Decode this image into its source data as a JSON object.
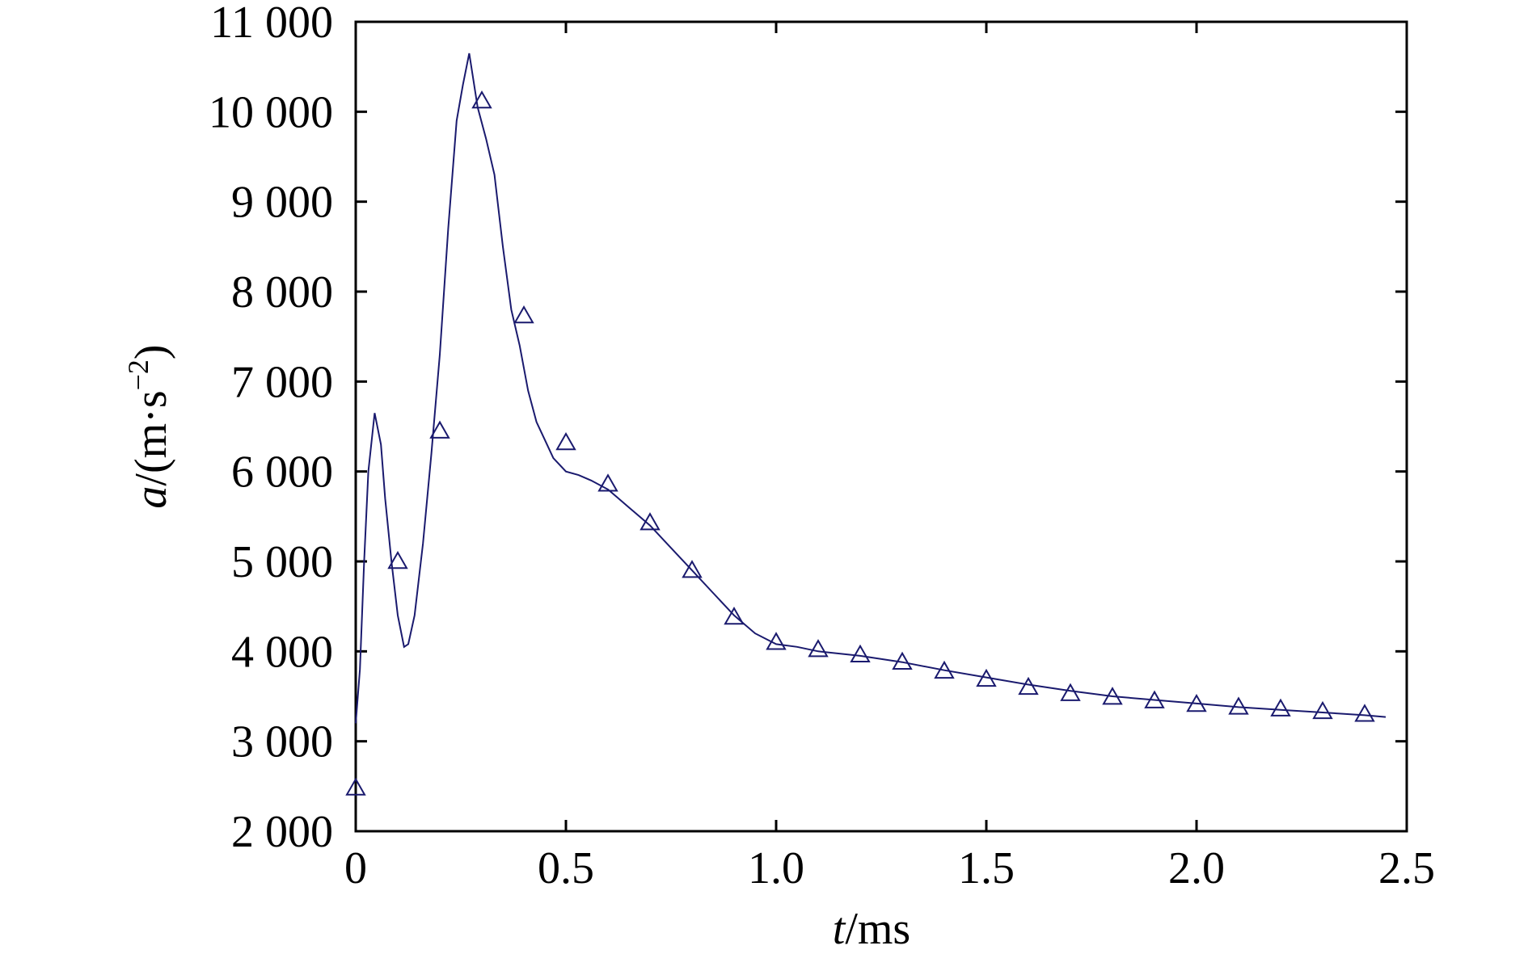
{
  "chart_data": {
    "type": "line",
    "xlabel_var": "t",
    "xlabel_unit": "/ms",
    "ylabel_var": "a",
    "ylabel_unit_open": "/(m·s",
    "ylabel_unit_exp": "−2",
    "ylabel_unit_close": ")",
    "xlim": [
      0,
      2.5
    ],
    "ylim": [
      2000,
      11000
    ],
    "grid": false,
    "x_ticks": [
      0,
      0.5,
      1.0,
      1.5,
      2.0,
      2.5
    ],
    "x_tick_labels": [
      "0",
      "0.5",
      "1.0",
      "1.5",
      "2.0",
      "2.5"
    ],
    "y_ticks": [
      2000,
      3000,
      4000,
      5000,
      6000,
      7000,
      8000,
      9000,
      10000,
      11000
    ],
    "y_tick_labels": [
      "2 000",
      "3 000",
      "4 000",
      "5 000",
      "6 000",
      "7 000",
      "8 000",
      "9 000",
      "10 000",
      "11 000"
    ],
    "line_color": "#1a1a6e",
    "marker_color": "#1a1a6e",
    "series": [
      {
        "marker": "triangle",
        "line_x": [
          0,
          0.01,
          0.02,
          0.03,
          0.045,
          0.06,
          0.07,
          0.085,
          0.1,
          0.115,
          0.125,
          0.14,
          0.16,
          0.18,
          0.2,
          0.22,
          0.24,
          0.255,
          0.27,
          0.28,
          0.29,
          0.31,
          0.33,
          0.35,
          0.37,
          0.39,
          0.41,
          0.43,
          0.45,
          0.47,
          0.5,
          0.53,
          0.56,
          0.6,
          0.65,
          0.7,
          0.75,
          0.8,
          0.85,
          0.9,
          0.95,
          1.0,
          1.05,
          1.1,
          1.2,
          1.3,
          1.4,
          1.5,
          1.6,
          1.7,
          1.8,
          1.9,
          2.0,
          2.1,
          2.2,
          2.3,
          2.4,
          2.45
        ],
        "line_y": [
          3200,
          3800,
          5000,
          6000,
          6650,
          6300,
          5700,
          5000,
          4400,
          4050,
          4080,
          4400,
          5200,
          6200,
          7300,
          8700,
          9900,
          10300,
          10650,
          10350,
          10050,
          9700,
          9300,
          8500,
          7800,
          7400,
          6900,
          6550,
          6350,
          6150,
          6000,
          5960,
          5900,
          5800,
          5600,
          5400,
          5150,
          4900,
          4650,
          4400,
          4200,
          4080,
          4050,
          4000,
          3950,
          3880,
          3790,
          3710,
          3630,
          3560,
          3500,
          3460,
          3420,
          3380,
          3350,
          3320,
          3290,
          3270
        ],
        "marker_x": [
          0,
          0.1,
          0.2,
          0.3,
          0.4,
          0.5,
          0.6,
          0.7,
          0.8,
          0.9,
          1.0,
          1.1,
          1.2,
          1.3,
          1.4,
          1.5,
          1.6,
          1.7,
          1.8,
          1.9,
          2.0,
          2.1,
          2.2,
          2.3,
          2.4
        ],
        "marker_y": [
          2480,
          5000,
          6450,
          10120,
          7730,
          6320,
          5860,
          5430,
          4900,
          4380,
          4100,
          4020,
          3960,
          3880,
          3780,
          3690,
          3600,
          3530,
          3490,
          3450,
          3410,
          3380,
          3360,
          3330,
          3300
        ]
      }
    ]
  }
}
